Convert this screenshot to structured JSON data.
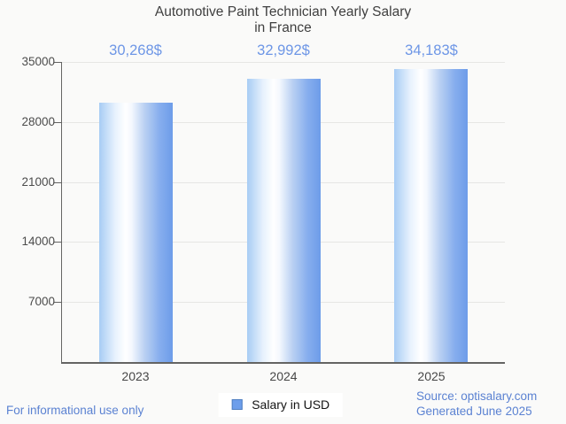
{
  "page": {
    "background": "#fafaf9"
  },
  "title": {
    "line1": "Automotive Paint Technician Yearly Salary",
    "line2": "in France"
  },
  "chart_data": {
    "type": "bar",
    "title": "Automotive Paint Technician Yearly Salary in France",
    "categories": [
      "2023",
      "2024",
      "2025"
    ],
    "series": [
      {
        "name": "Salary in USD",
        "values": [
          30268,
          32992,
          34183
        ]
      }
    ],
    "value_labels": [
      "30,268$",
      "32,992$",
      "34,183$"
    ],
    "xlabel": "",
    "ylabel": "",
    "ylim": [
      0,
      35000
    ],
    "yticks": [
      35000,
      28000,
      21000,
      14000,
      7000
    ],
    "grid": true,
    "legend_position": "bottom",
    "bar_gradient": [
      "#a7ccf4",
      "#ffffff",
      "#6d9ce9"
    ],
    "value_label_color": "#6d96e6",
    "gridline_color": "#e6e6e4",
    "axis_color": "#646463"
  },
  "legend": {
    "label": "Salary in USD",
    "swatch_color": "#6d9eeb",
    "swatch_border_color": "#4f7fc1"
  },
  "footer": {
    "disclaimer": "For informational use only",
    "source_line1": "Source: optisalary.com",
    "source_line2": "Generated June 2025"
  }
}
